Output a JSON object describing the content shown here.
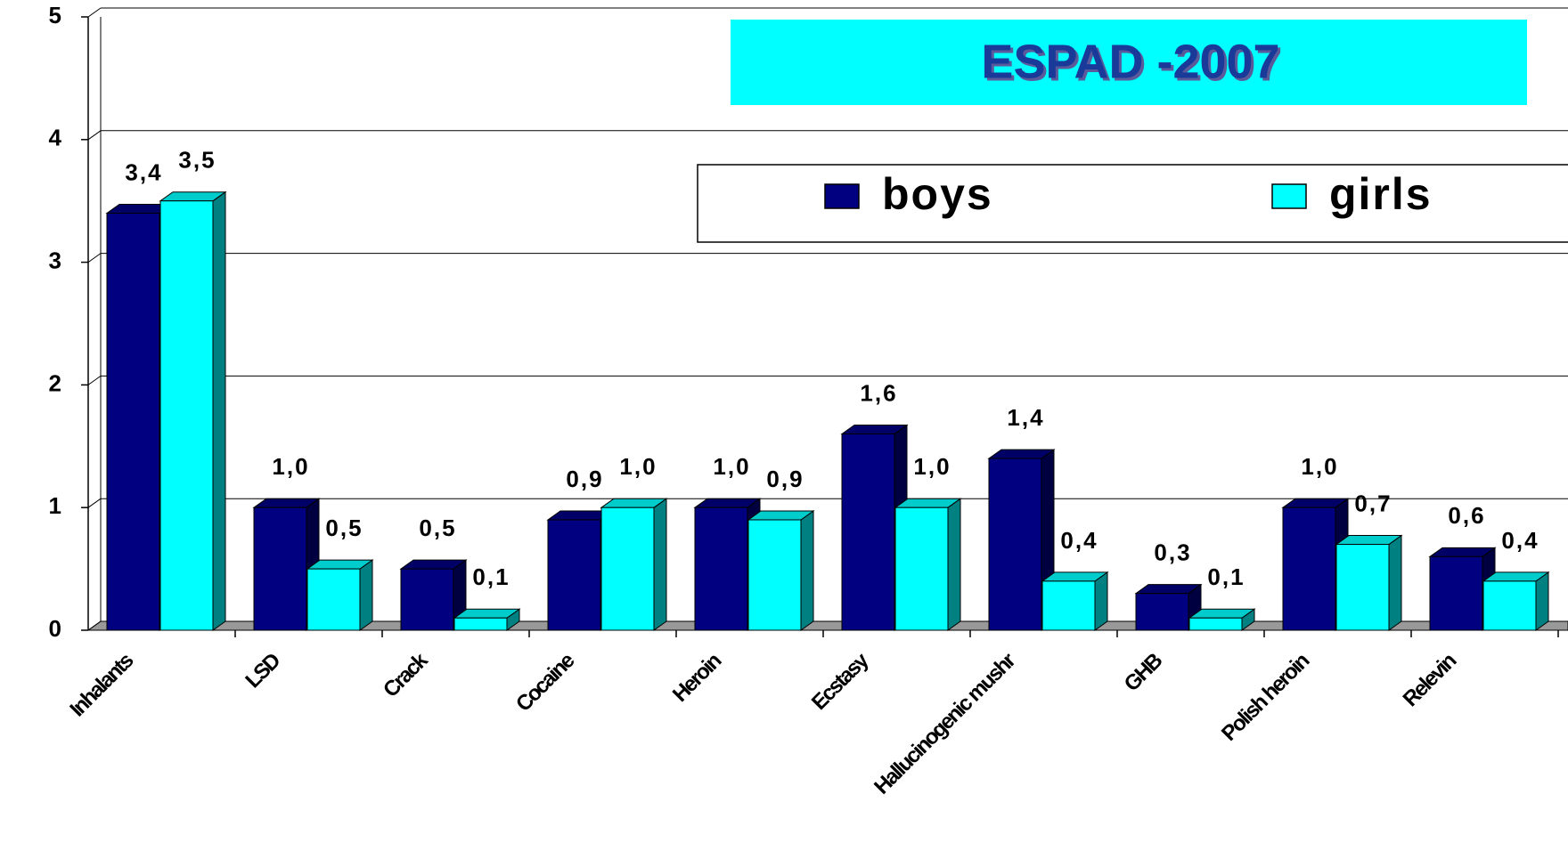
{
  "chart_data": {
    "type": "bar3d",
    "title": "ESPAD -2007",
    "categories": [
      "Inhalants",
      "LSD",
      "Crack",
      "Cocaine",
      "Heroin",
      "Ecstasy",
      "Hallucinogenic mushr",
      "GHB",
      "Polish heroin",
      "Relevin"
    ],
    "series": [
      {
        "name": "boys",
        "color": "#000080",
        "values": [
          3.4,
          1.0,
          0.5,
          0.9,
          1.0,
          1.6,
          1.4,
          0.3,
          1.0,
          0.6
        ],
        "value_labels": [
          "3,4",
          "1,0",
          "0,5",
          "0,9",
          "1,0",
          "1,6",
          "1,4",
          "0,3",
          "1,0",
          "0,6"
        ]
      },
      {
        "name": "girls",
        "color": "#00ffff",
        "values": [
          3.5,
          0.5,
          0.1,
          1.0,
          0.9,
          1.0,
          0.4,
          0.1,
          0.7,
          0.4
        ],
        "value_labels": [
          "3,5",
          "0,5",
          "0,1",
          "1,0",
          "0,9",
          "1,0",
          "0,4",
          "0,1",
          "0,7",
          "0,4"
        ]
      }
    ],
    "ylim": [
      0,
      5
    ],
    "yticks": [
      0,
      1,
      2,
      3,
      4,
      5
    ],
    "grid": true,
    "legend": "top"
  }
}
